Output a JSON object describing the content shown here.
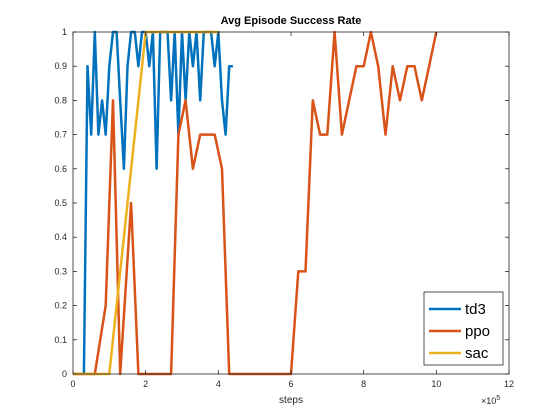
{
  "chart_data": {
    "type": "line",
    "title": "Avg Episode Success Rate",
    "xlabel": "steps",
    "ylabel": "",
    "x_multiplier_label": "×10",
    "x_multiplier_exp": "5",
    "xlim": [
      0,
      12
    ],
    "ylim": [
      0,
      1
    ],
    "xticks": [
      0,
      2,
      4,
      6,
      8,
      10,
      12
    ],
    "xtick_labels": [
      "0",
      "2",
      "4",
      "6",
      "8",
      "10",
      "12"
    ],
    "yticks": [
      0,
      0.1,
      0.2,
      0.3,
      0.4,
      0.5,
      0.6,
      0.7,
      0.8,
      0.9,
      1
    ],
    "ytick_labels": [
      "0",
      "0.1",
      "0.2",
      "0.3",
      "0.4",
      "0.5",
      "0.6",
      "0.7",
      "0.8",
      "0.9",
      "1"
    ],
    "grid": false,
    "legend_position": "bottom-right",
    "series": [
      {
        "name": "td3",
        "color": "#0072BD",
        "x": [
          0.3,
          0.4,
          0.5,
          0.6,
          0.7,
          0.8,
          0.9,
          1.0,
          1.1,
          1.2,
          1.3,
          1.4,
          1.5,
          1.6,
          1.7,
          1.8,
          1.9,
          2.0,
          2.1,
          2.2,
          2.3,
          2.4,
          2.5,
          2.6,
          2.7,
          2.8,
          2.9,
          3.0,
          3.1,
          3.2,
          3.3,
          3.4,
          3.5,
          3.6,
          3.7,
          3.8,
          3.9,
          4.0,
          4.1,
          4.2,
          4.3,
          4.4
        ],
        "y": [
          0,
          0.9,
          0.7,
          1,
          0.7,
          0.8,
          0.7,
          0.9,
          1,
          1,
          0.8,
          0.6,
          0.9,
          1,
          1,
          0.9,
          1,
          1,
          0.9,
          1,
          0.6,
          1,
          1,
          1,
          0.8,
          1,
          0.7,
          1,
          0.8,
          1,
          0.9,
          1,
          0.8,
          1,
          1,
          1,
          0.9,
          1,
          0.8,
          0.7,
          0.9,
          0.9
        ]
      },
      {
        "name": "ppo",
        "color": "#D95319",
        "x": [
          0,
          0.6,
          0.9,
          1.1,
          1.3,
          1.6,
          1.8,
          2.7,
          2.9,
          3.1,
          3.3,
          3.5,
          3.9,
          4.1,
          4.3,
          6.0,
          6.2,
          6.4,
          6.6,
          6.8,
          7.0,
          7.2,
          7.4,
          7.8,
          8.0,
          8.2,
          8.4,
          8.6,
          8.8,
          9.0,
          9.2,
          9.4,
          9.6,
          9.8,
          10.0
        ],
        "y": [
          0,
          0,
          0.2,
          0.8,
          0,
          0.5,
          0,
          0,
          0.7,
          0.8,
          0.6,
          0.7,
          0.7,
          0.6,
          0,
          0,
          0.3,
          0.3,
          0.8,
          0.7,
          0.7,
          1,
          0.7,
          0.9,
          0.9,
          1,
          0.9,
          0.7,
          0.9,
          0.8,
          0.9,
          0.9,
          0.8,
          0.9,
          1
        ]
      },
      {
        "name": "sac",
        "color": "#EDB120",
        "x": [
          0,
          1.0,
          1.2,
          2.0,
          2.4,
          4.0
        ],
        "y": [
          0,
          0,
          0.2,
          1,
          1,
          1
        ]
      }
    ]
  }
}
